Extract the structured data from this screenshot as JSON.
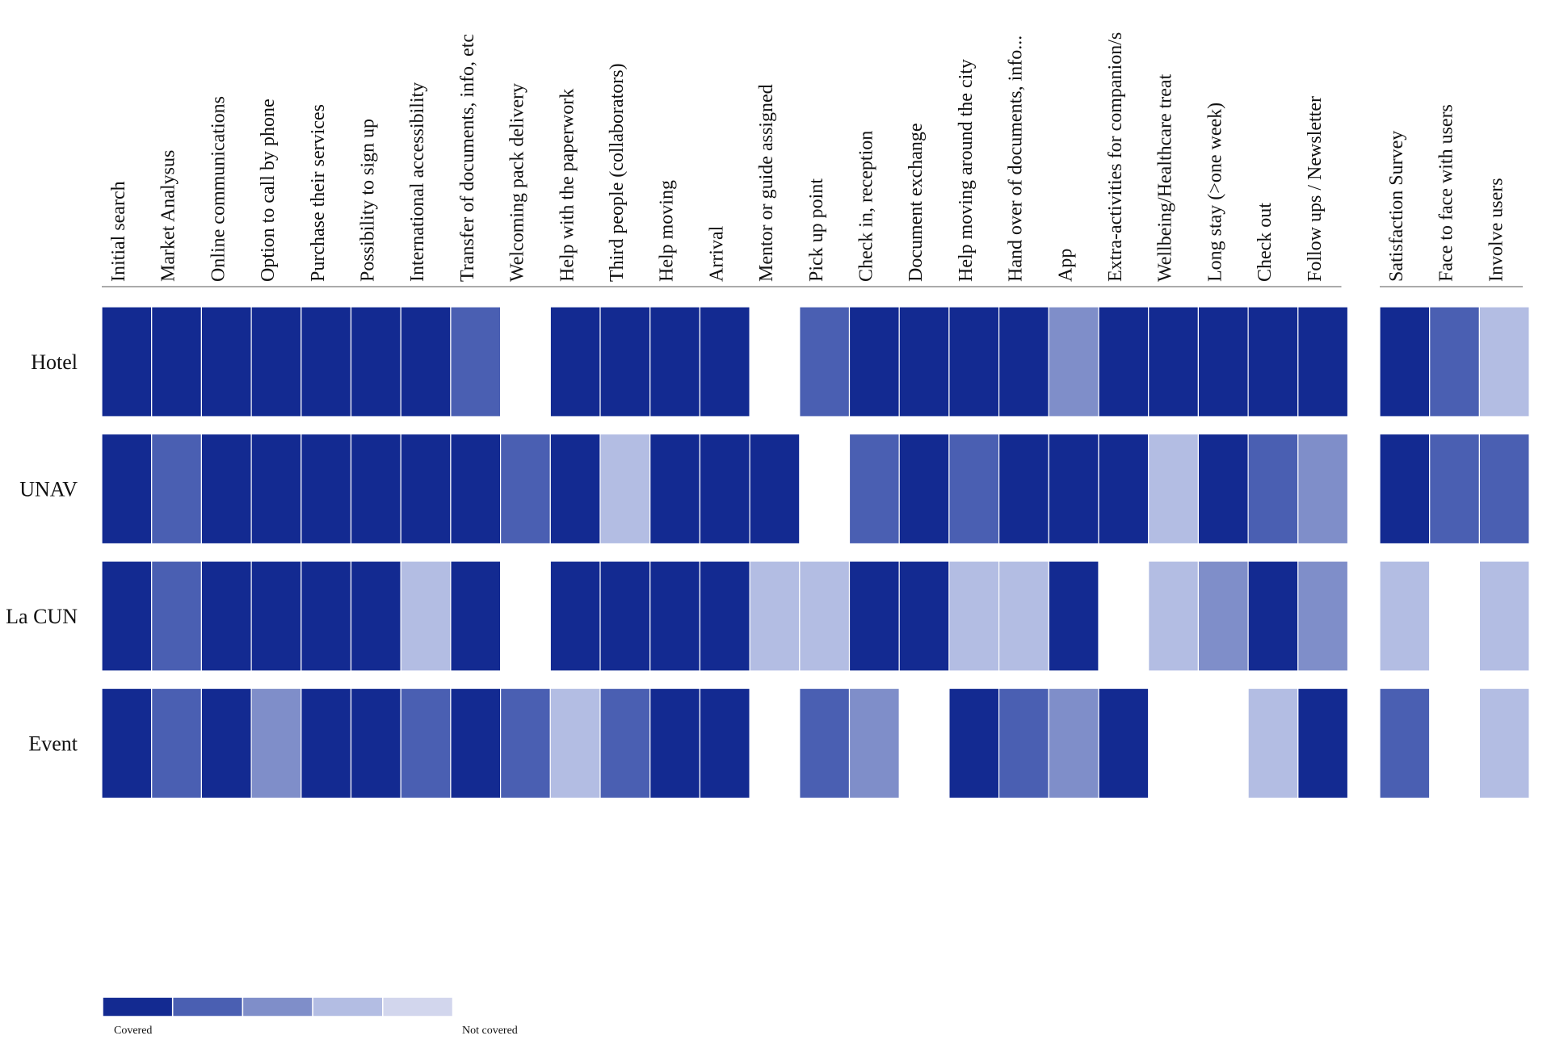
{
  "chart_data": {
    "type": "heatmap",
    "columns": [
      [
        "Initial search",
        "Market Analysus",
        "Online communications",
        "Option to call by phone",
        "Purchase their services",
        "Possibility to sign up",
        "International accessibility",
        "Transfer of documents, info, etc",
        "Welcoming pack delivery",
        "Help with the paperwork",
        "Third people (collaborators)",
        "Help moving",
        "Arrival",
        "Mentor or guide assigned",
        "Pick up point",
        "Check in, reception",
        "Document exchange",
        "Help moving around the city",
        "Hand over of documents, info...",
        "App",
        "Extra-activities for companion/s",
        "Wellbeing/Healthcare treat",
        "Long stay (>one week)",
        "Check out",
        "Follow ups / Newsletter"
      ],
      [
        "Satisfaction Survey",
        "Face to face with users",
        "Involve users"
      ]
    ],
    "rows": [
      {
        "label": "Hotel",
        "values": [
          [
            4,
            4,
            4,
            4,
            4,
            4,
            4,
            3,
            null,
            4,
            4,
            4,
            4,
            null,
            3,
            4,
            4,
            4,
            4,
            2,
            4,
            4,
            4,
            4,
            4
          ],
          [
            4,
            3,
            1
          ]
        ]
      },
      {
        "label": "UNAV",
        "values": [
          [
            4,
            3,
            4,
            4,
            4,
            4,
            4,
            4,
            3,
            4,
            1,
            4,
            4,
            4,
            null,
            3,
            4,
            3,
            4,
            4,
            4,
            1,
            4,
            3,
            2
          ],
          [
            4,
            3,
            3
          ]
        ]
      },
      {
        "label": "La CUN",
        "values": [
          [
            4,
            3,
            4,
            4,
            4,
            4,
            1,
            4,
            null,
            4,
            4,
            4,
            4,
            1,
            1,
            4,
            4,
            1,
            1,
            4,
            null,
            1,
            2,
            4,
            2
          ],
          [
            1,
            null,
            1
          ]
        ]
      },
      {
        "label": "Event",
        "values": [
          [
            4,
            3,
            4,
            2,
            4,
            4,
            3,
            4,
            3,
            1,
            3,
            4,
            4,
            null,
            3,
            2,
            null,
            4,
            3,
            2,
            4,
            null,
            null,
            1,
            4
          ],
          [
            3,
            null,
            1
          ]
        ]
      }
    ],
    "colors": [
      "#132a91",
      "#4a5fb2",
      "#7f8ec9",
      "#b3bde3",
      "#d2d6ed"
    ],
    "legend": {
      "high_label": "Covered",
      "low_label": "Not covered"
    }
  }
}
